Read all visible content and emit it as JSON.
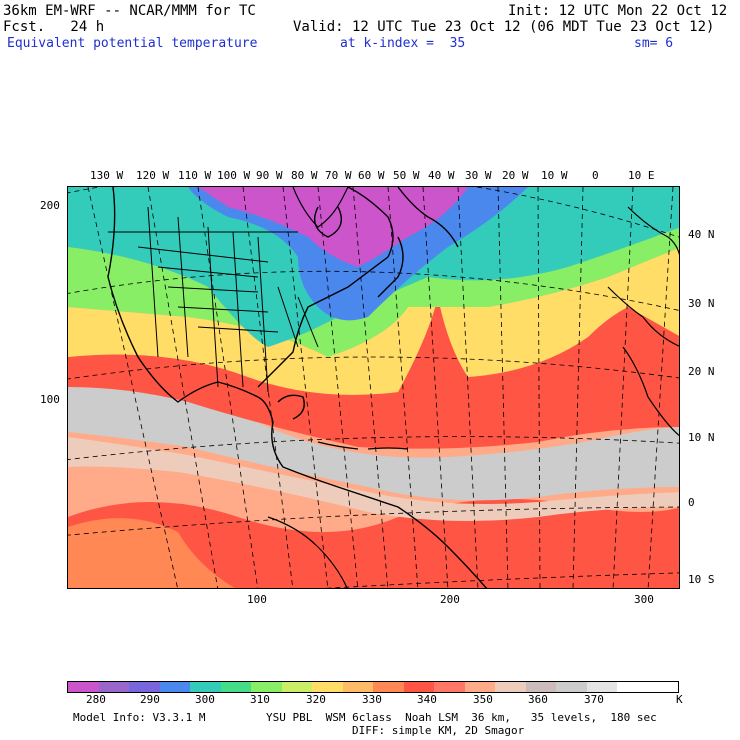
{
  "header": {
    "model_title": "36km EM-WRF -- NCAR/MMM for TC",
    "init": "Init: 12 UTC Mon 22 Oct 12",
    "fcst": "Fcst.   24 h",
    "valid": "Valid: 12 UTC Tue 23 Oct 12 (06 MDT Tue 23 Oct 12)",
    "field": "Equivalent potential temperature",
    "kindex": "at k-index =  35",
    "smooth": "sm= 6"
  },
  "map": {
    "lon_labels": [
      "130 W",
      "120 W",
      "110 W",
      "100 W",
      "90 W",
      "80 W",
      "70 W",
      "60 W",
      "50 W",
      "40 W",
      "30 W",
      "20 W",
      "10 W",
      "0",
      "10 E"
    ],
    "lat_labels": [
      "40 N",
      "30 N",
      "20 N",
      "10 N",
      "0",
      "10 S"
    ],
    "grid_y_labels": [
      "200",
      "100"
    ],
    "grid_x_labels": [
      "100",
      "200",
      "300"
    ]
  },
  "colorbar": {
    "colors": [
      "#cc55cc",
      "#9966cc",
      "#7766dd",
      "#4a88ee",
      "#33ccbb",
      "#44dd88",
      "#88ee66",
      "#ccee66",
      "#ffdd66",
      "#ffbb66",
      "#ff8855",
      "#ff5544",
      "#ff7766",
      "#ffaa88",
      "#eeccbb",
      "#ccbbbb",
      "#cccccc",
      "#e4e4e4",
      "#ffffff",
      "#ffffff"
    ],
    "labels": [
      "280",
      "290",
      "300",
      "310",
      "320",
      "330",
      "340",
      "350",
      "360",
      "370"
    ],
    "unit": "K"
  },
  "footer": {
    "model_info": "Model Info: V3.3.1 M",
    "physics": "YSU PBL  WSM 6class  Noah LSM  36 km,   35 levels,  180 sec",
    "diffusion": "DIFF: simple KM, 2D Smagor"
  }
}
